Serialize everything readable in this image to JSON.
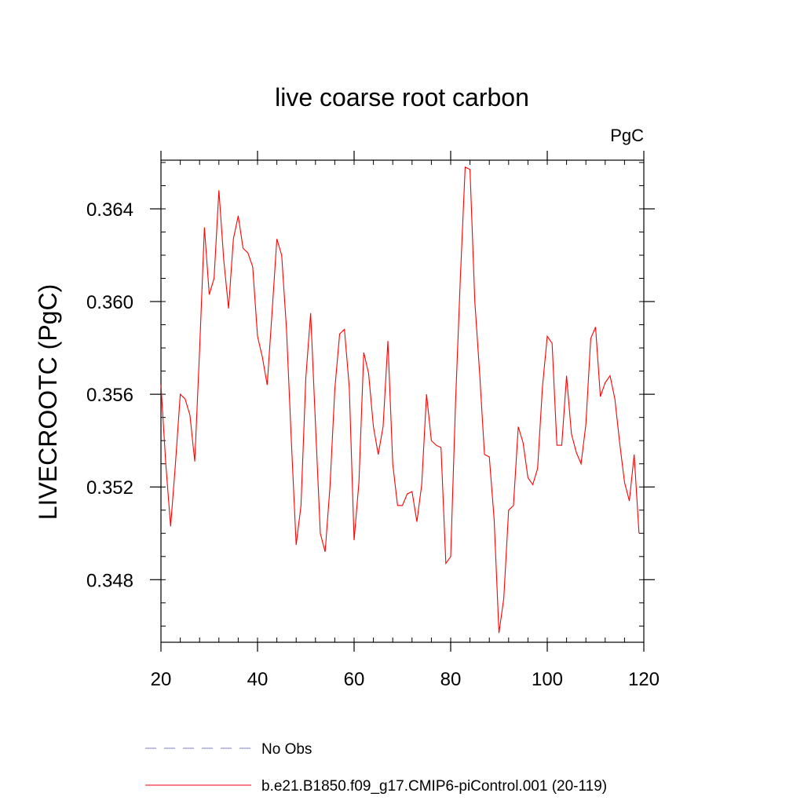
{
  "chart_data": {
    "type": "line",
    "title": "live coarse root carbon",
    "units_label": "PgC",
    "xlabel": "",
    "ylabel": "LIVECROOTC  (PgC)",
    "xlim": [
      20,
      120
    ],
    "ylim": [
      0.3453,
      0.3661
    ],
    "x_ticks": [
      20,
      40,
      60,
      80,
      100,
      120
    ],
    "y_ticks": [
      0.348,
      0.352,
      0.356,
      0.36,
      0.364
    ],
    "y_tick_labels": [
      "0.348",
      "0.352",
      "0.356",
      "0.360",
      "0.364"
    ],
    "x_tick_labels": [
      "20",
      "40",
      "60",
      "80",
      "100",
      "120"
    ],
    "grid": false,
    "legend_position": "bottom",
    "series": [
      {
        "name": "No Obs",
        "color": "#8080c0",
        "dash": "dashed",
        "x": [],
        "y": []
      },
      {
        "name": "b.e21.B1850.f09_g17.CMIP6-piControl.001 (20-119)",
        "color": "#ff0000",
        "dash": "solid",
        "x": [
          20,
          21,
          22,
          23,
          24,
          25,
          26,
          27,
          28,
          29,
          30,
          31,
          32,
          33,
          34,
          35,
          36,
          37,
          38,
          39,
          40,
          41,
          42,
          43,
          44,
          45,
          46,
          47,
          48,
          49,
          50,
          51,
          52,
          53,
          54,
          55,
          56,
          57,
          58,
          59,
          60,
          61,
          62,
          63,
          64,
          65,
          66,
          67,
          68,
          69,
          70,
          71,
          72,
          73,
          74,
          75,
          76,
          77,
          78,
          79,
          80,
          81,
          82,
          83,
          84,
          85,
          86,
          87,
          88,
          89,
          90,
          91,
          92,
          93,
          94,
          95,
          96,
          97,
          98,
          99,
          100,
          101,
          102,
          103,
          104,
          105,
          106,
          107,
          108,
          109,
          110,
          111,
          112,
          113,
          114,
          115,
          116,
          117,
          118,
          119
        ],
        "y": [
          0.3564,
          0.353,
          0.3503,
          0.353,
          0.356,
          0.3558,
          0.3551,
          0.3531,
          0.3579,
          0.3632,
          0.3603,
          0.361,
          0.3648,
          0.3618,
          0.3597,
          0.3627,
          0.3637,
          0.3623,
          0.3621,
          0.3615,
          0.3585,
          0.3576,
          0.3564,
          0.3595,
          0.3627,
          0.362,
          0.3588,
          0.354,
          0.3495,
          0.3512,
          0.3567,
          0.3595,
          0.3547,
          0.35,
          0.3492,
          0.352,
          0.3562,
          0.3586,
          0.3588,
          0.3563,
          0.3497,
          0.3522,
          0.3578,
          0.3569,
          0.3546,
          0.3534,
          0.3546,
          0.3583,
          0.353,
          0.3512,
          0.3512,
          0.3517,
          0.3518,
          0.3505,
          0.3521,
          0.356,
          0.354,
          0.3538,
          0.3537,
          0.3487,
          0.349,
          0.3556,
          0.361,
          0.3658,
          0.3657,
          0.36,
          0.3569,
          0.3534,
          0.3533,
          0.3506,
          0.3457,
          0.3472,
          0.351,
          0.3512,
          0.3546,
          0.3539,
          0.3524,
          0.3521,
          0.3528,
          0.3563,
          0.3585,
          0.3582,
          0.3538,
          0.3538,
          0.3568,
          0.3543,
          0.3535,
          0.353,
          0.3547,
          0.3584,
          0.3589,
          0.3559,
          0.3565,
          0.3568,
          0.3558,
          0.3539,
          0.3522,
          0.3514,
          0.3534,
          0.35
        ]
      }
    ]
  }
}
